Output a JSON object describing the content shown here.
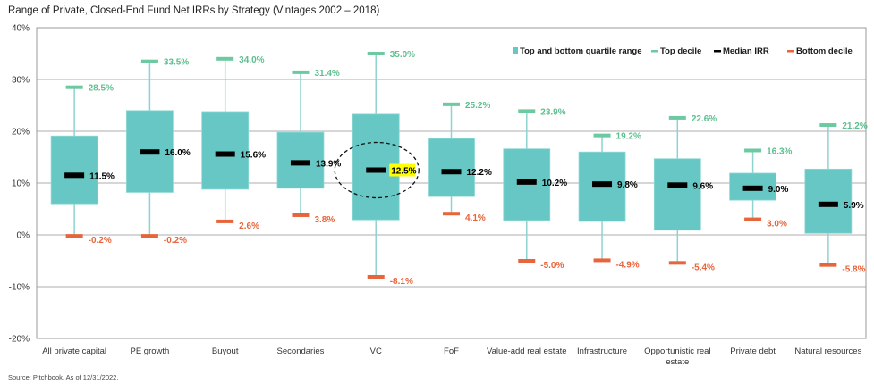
{
  "chart_data": {
    "type": "boxplot",
    "title": "Range of Private, Closed-End Fund Net IRRs by Strategy (Vintages 2002 – 2018)",
    "source": "Source: Pitchbook. As of 12/31/2022.",
    "xlabel": "",
    "ylabel": "",
    "ylim": [
      -20,
      40
    ],
    "yticks": [
      40,
      30,
      20,
      10,
      0,
      -10,
      -20
    ],
    "ytick_labels": [
      "40%",
      "30%",
      "20%",
      "10%",
      "0%",
      "-10%",
      "-20%"
    ],
    "grid": true,
    "legend_position": "top-right",
    "legend": [
      {
        "label": "Top and bottom quartile range",
        "kind": "box",
        "color": "#66c7c4"
      },
      {
        "label": "Top decile",
        "kind": "line",
        "color": "#6cc9a0"
      },
      {
        "label": "Median IRR",
        "kind": "line",
        "color": "#000000"
      },
      {
        "label": "Bottom decile",
        "kind": "line",
        "color": "#e8643a"
      }
    ],
    "colors": {
      "box": "#66c7c4",
      "whisker": "#8fd3d1",
      "top_decile": "#6cc9a0",
      "top_label": "#5dbf8f",
      "median": "#000000",
      "bottom_decile": "#e8643a",
      "highlight": "#ffff00",
      "grid": "#c8c8c8",
      "axis": "#9a9a9a"
    },
    "categories": [
      [
        "All private capital"
      ],
      [
        "PE growth"
      ],
      [
        "Buyout"
      ],
      [
        "Secondaries"
      ],
      [
        "VC"
      ],
      [
        "FoF"
      ],
      [
        "Value-add real estate"
      ],
      [
        "Infrastructure"
      ],
      [
        "Opportunistic real",
        "estate"
      ],
      [
        "Private debt"
      ],
      [
        "Natural resources"
      ]
    ],
    "series": [
      {
        "name": "Top decile",
        "values": [
          28.5,
          33.5,
          34.0,
          31.4,
          35.0,
          25.2,
          23.9,
          19.2,
          22.6,
          16.3,
          21.2
        ],
        "labels": [
          "28.5%",
          "33.5%",
          "34.0%",
          "31.4%",
          "35.0%",
          "25.2%",
          "23.9%",
          "19.2%",
          "22.6%",
          "16.3%",
          "21.2%"
        ]
      },
      {
        "name": "Top quartile",
        "values": [
          19.1,
          24.0,
          23.8,
          19.8,
          23.3,
          18.6,
          16.6,
          16.0,
          14.7,
          11.9,
          12.7
        ]
      },
      {
        "name": "Median IRR",
        "values": [
          11.5,
          16.0,
          15.6,
          13.9,
          12.5,
          12.2,
          10.2,
          9.8,
          9.6,
          9.0,
          5.9
        ],
        "labels": [
          "11.5%",
          "16.0%",
          "15.6%",
          "13.9%",
          "12.5%",
          "12.2%",
          "10.2%",
          "9.8%",
          "9.6%",
          "9.0%",
          "5.9%"
        ]
      },
      {
        "name": "Bottom quartile",
        "values": [
          6.0,
          8.2,
          8.8,
          9.0,
          2.9,
          7.4,
          2.8,
          2.6,
          0.9,
          6.7,
          0.3
        ]
      },
      {
        "name": "Bottom decile",
        "values": [
          -0.2,
          -0.2,
          2.6,
          3.8,
          -8.1,
          4.1,
          -5.0,
          -4.9,
          -5.4,
          3.0,
          -5.8
        ],
        "labels": [
          "-0.2%",
          "-0.2%",
          "2.6%",
          "3.8%",
          "-8.1%",
          "4.1%",
          "-5.0%",
          "-4.9%",
          "-5.4%",
          "3.0%",
          "-5.8%"
        ]
      }
    ],
    "annotations": [
      {
        "type": "dashed-ellipse",
        "category": "VC",
        "target": "median",
        "highlight_label": true
      }
    ]
  }
}
